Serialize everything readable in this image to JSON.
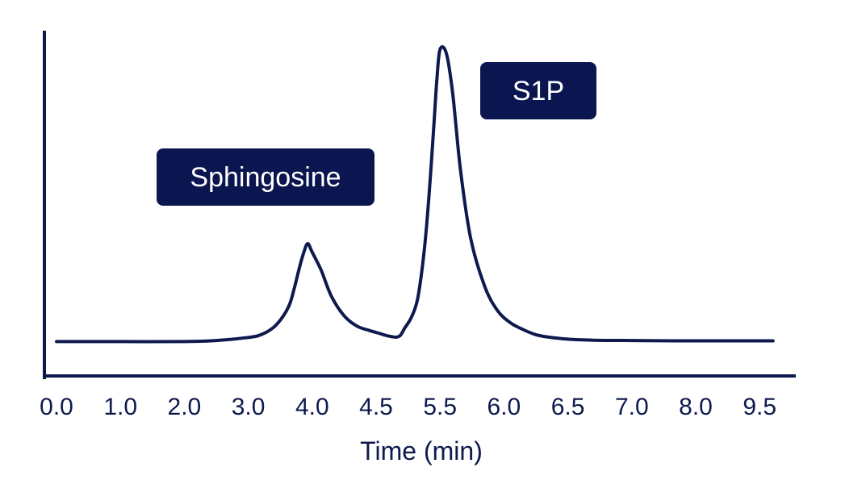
{
  "colors": {
    "ink": "#0e1a4d",
    "label_bg": "#0b1650",
    "label_text": "#ffffff",
    "background": "#ffffff"
  },
  "chart_data": {
    "type": "line",
    "title": "",
    "xlabel": "Time (min)",
    "ylabel": "",
    "grid": false,
    "x_tick_labels": [
      "0.0",
      "1.0",
      "2.0",
      "3.0",
      "4.0",
      "4.5",
      "5.5",
      "6.0",
      "6.5",
      "7.0",
      "8.0",
      "9.5"
    ],
    "ylim": [
      0,
      1
    ],
    "baseline": 0.1,
    "series": [
      {
        "name": "chromatogram",
        "x": [
          0.0,
          1.0,
          2.0,
          2.5,
          3.0,
          3.2,
          3.4,
          3.55,
          3.65,
          3.72,
          3.8,
          3.87,
          3.93,
          4.0,
          4.07,
          4.15,
          4.25,
          4.35,
          4.45,
          4.55,
          4.65,
          4.75,
          4.82,
          4.88,
          4.95,
          5.05,
          5.15,
          5.25,
          5.33,
          5.4,
          5.45,
          5.5,
          5.55,
          5.6,
          5.66,
          5.74,
          5.85,
          5.95,
          6.05,
          6.15,
          6.25,
          6.35,
          6.5,
          6.7,
          7.0,
          8.0,
          9.5,
          9.86
        ],
        "y": [
          0.1,
          0.1,
          0.1,
          0.103,
          0.112,
          0.12,
          0.142,
          0.175,
          0.21,
          0.255,
          0.315,
          0.36,
          0.385,
          0.36,
          0.308,
          0.232,
          0.175,
          0.145,
          0.132,
          0.124,
          0.118,
          0.114,
          0.113,
          0.118,
          0.14,
          0.17,
          0.225,
          0.36,
          0.53,
          0.72,
          0.86,
          0.95,
          0.938,
          0.82,
          0.6,
          0.4,
          0.26,
          0.19,
          0.155,
          0.135,
          0.12,
          0.113,
          0.107,
          0.104,
          0.103,
          0.102,
          0.102,
          0.102
        ]
      }
    ],
    "annotations": [
      {
        "text": "Sphingosine",
        "anchor_x": 4.0
      },
      {
        "text": "S1P",
        "anchor_x": 5.5
      }
    ]
  }
}
